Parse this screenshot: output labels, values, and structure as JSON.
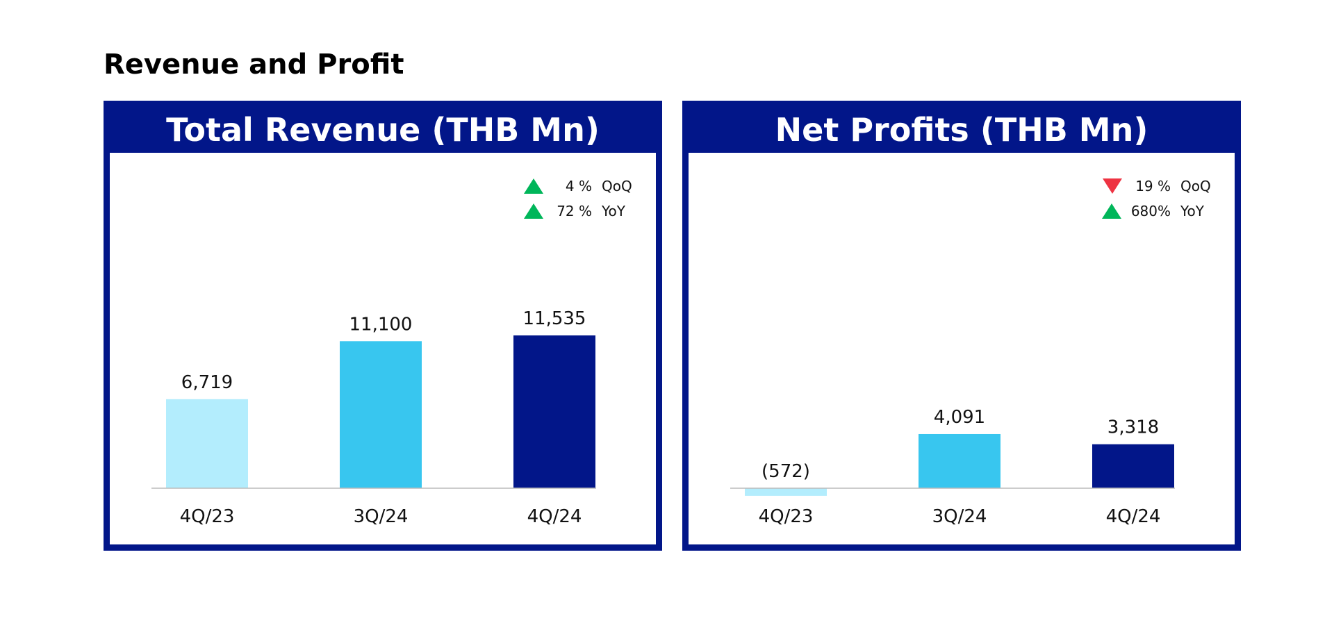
{
  "page": {
    "title": "Revenue and Profit"
  },
  "colors": {
    "navy": "#021689",
    "cyan": "#38c6ef",
    "light_cyan": "#b3edfd",
    "up": "#00b65a",
    "down": "#ee3342",
    "axis": "#bbbbbb"
  },
  "panels": [
    {
      "header": "Total Revenue (THB Mn)",
      "badges": [
        {
          "direction": "up",
          "value": "4 %",
          "label": "QoQ"
        },
        {
          "direction": "up",
          "value": "72 %",
          "label": "YoY"
        }
      ]
    },
    {
      "header": "Net Profits (THB Mn)",
      "badges": [
        {
          "direction": "down",
          "value": "19 %",
          "label": "QoQ"
        },
        {
          "direction": "up",
          "value": "680%",
          "label": "YoY"
        }
      ]
    }
  ],
  "chart_data": [
    {
      "type": "bar",
      "title": "Total Revenue (THB Mn)",
      "categories": [
        "4Q/23",
        "3Q/24",
        "4Q/24"
      ],
      "values": [
        6719,
        11100,
        11535
      ],
      "value_labels": [
        "6,719",
        "11,100",
        "11,535"
      ],
      "bar_colors": [
        "#b3edfd",
        "#38c6ef",
        "#021689"
      ],
      "ylim": [
        0,
        11535
      ],
      "grid": false,
      "legend": "none"
    },
    {
      "type": "bar",
      "title": "Net Profits (THB Mn)",
      "categories": [
        "4Q/23",
        "3Q/24",
        "4Q/24"
      ],
      "values": [
        -572,
        4091,
        3318
      ],
      "value_labels": [
        "(572)",
        "4,091",
        "3,318"
      ],
      "bar_colors": [
        "#b3edfd",
        "#38c6ef",
        "#021689"
      ],
      "ylim": [
        -572,
        11535
      ],
      "grid": false,
      "legend": "none"
    }
  ]
}
